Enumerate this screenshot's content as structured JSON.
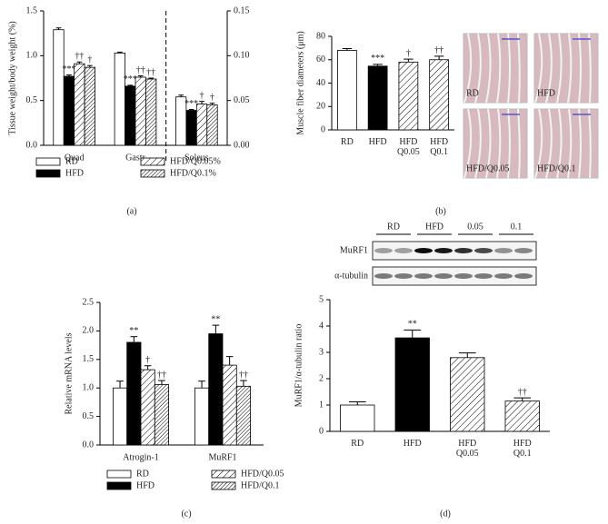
{
  "chart_data": [
    {
      "type": "bar",
      "panel": "(a)",
      "ylabel": "Tissue weight/body weight (%)",
      "categories": [
        "Quad",
        "Gastr",
        "Soleus"
      ],
      "category_axis": [
        "y",
        "y",
        "y2"
      ],
      "series": [
        {
          "name": "RD",
          "color": "#ffffff",
          "pattern": "none",
          "values": [
            1.29,
            1.03,
            0.054
          ],
          "errors": [
            0.02,
            0.01,
            0.002
          ],
          "labels": [
            null,
            null,
            null
          ]
        },
        {
          "name": "HFD",
          "color": "#000000",
          "pattern": "none",
          "values": [
            0.77,
            0.66,
            0.039
          ],
          "errors": [
            0.015,
            0.01,
            0.001
          ],
          "labels": [
            "***",
            "***",
            "***"
          ]
        },
        {
          "name": "HFD/Q0.05%",
          "color": "#ffffff",
          "pattern": "hatch",
          "values": [
            0.91,
            0.76,
            0.046
          ],
          "errors": [
            0.02,
            0.015,
            0.003
          ],
          "labels": [
            "††",
            "††",
            "†"
          ]
        },
        {
          "name": "HFD/Q0.1%",
          "color": "#ffffff",
          "pattern": "dense",
          "values": [
            0.87,
            0.74,
            0.045
          ],
          "errors": [
            0.02,
            0.01,
            0.002
          ],
          "labels": [
            "†",
            "††",
            "†"
          ]
        }
      ],
      "ylim": [
        0,
        1.5
      ],
      "yticks": [
        {
          "value": 0,
          "label": "0.0"
        },
        {
          "value": 0.5,
          "label": "0.5"
        },
        {
          "value": 1,
          "label": "1.0"
        },
        {
          "value": 1.5,
          "label": "1.5"
        }
      ],
      "y2lim": [
        0,
        0.15
      ],
      "y2ticks": [
        {
          "value": 0,
          "label": "0.00"
        },
        {
          "value": 0.05,
          "label": "0.05"
        },
        {
          "value": 0.1,
          "label": "0.10"
        },
        {
          "value": 0.15,
          "label": "0.15"
        }
      ],
      "divider": true,
      "legend": "bottom"
    },
    {
      "type": "bar",
      "panel": "(b)",
      "ylabel": "Muscle fiber diameters (μm)",
      "categories": [
        [
          "RD"
        ],
        [
          "HFD"
        ],
        [
          "HFD",
          "Q0.05"
        ],
        [
          "HFD",
          "Q0.1"
        ]
      ],
      "values": [
        68,
        54.5,
        58,
        60
      ],
      "errors": [
        1.5,
        1.5,
        2.5,
        3
      ],
      "labels": [
        null,
        "***",
        "†",
        "††"
      ],
      "colors": [
        "#ffffff",
        "#000000",
        "#ffffff",
        "#ffffff"
      ],
      "patterns": [
        "none",
        "none",
        "hatch",
        "hatch"
      ],
      "ylim": [
        0,
        80
      ],
      "yticks": [
        0,
        20,
        40,
        60,
        80
      ],
      "micrographs": [
        "RD",
        "HFD",
        "HFD/Q0.05",
        "HFD/Q0.1"
      ]
    },
    {
      "type": "bar",
      "panel": "(c)",
      "ylabel": "Relative mRNA levels",
      "categories": [
        "Atrogin-1",
        "MuRF1"
      ],
      "series": [
        {
          "name": "RD",
          "color": "#ffffff",
          "pattern": "none",
          "values": [
            1.0,
            1.0
          ],
          "errors": [
            0.12,
            0.12
          ],
          "labels": [
            null,
            null
          ]
        },
        {
          "name": "HFD",
          "color": "#000000",
          "pattern": "none",
          "values": [
            1.8,
            1.95
          ],
          "errors": [
            0.1,
            0.15
          ],
          "labels": [
            "**",
            "**"
          ]
        },
        {
          "name": "HFD/Q0.05",
          "color": "#ffffff",
          "pattern": "hatch",
          "values": [
            1.32,
            1.4
          ],
          "errors": [
            0.07,
            0.15
          ],
          "labels": [
            "†",
            null
          ]
        },
        {
          "name": "HFD/Q0.1",
          "color": "#ffffff",
          "pattern": "dense",
          "values": [
            1.06,
            1.03
          ],
          "errors": [
            0.07,
            0.1
          ],
          "labels": [
            "††",
            "††"
          ]
        }
      ],
      "ylim": [
        0,
        2.5
      ],
      "yticks": [
        {
          "value": 0,
          "label": "0.0"
        },
        {
          "value": 0.5,
          "label": "0.5"
        },
        {
          "value": 1,
          "label": "1.0"
        },
        {
          "value": 1.5,
          "label": "1.5"
        },
        {
          "value": 2,
          "label": "2.0"
        },
        {
          "value": 2.5,
          "label": "2.5"
        }
      ],
      "legend": "bottom"
    },
    {
      "type": "bar",
      "panel": "(d)",
      "ylabel": "MuRF1/α-tubulin ratio",
      "categories": [
        [
          "RD"
        ],
        [
          "HFD"
        ],
        [
          "HFD",
          "Q0.05"
        ],
        [
          "HFD",
          "Q0.1"
        ]
      ],
      "values": [
        1.0,
        3.55,
        2.8,
        1.15
      ],
      "errors": [
        0.12,
        0.3,
        0.18,
        0.12
      ],
      "labels": [
        null,
        "**",
        null,
        "††"
      ],
      "colors": [
        "#ffffff",
        "#000000",
        "#ffffff",
        "#ffffff"
      ],
      "patterns": [
        "none",
        "none",
        "hatch",
        "hatch"
      ],
      "ylim": [
        0,
        5
      ],
      "yticks": [
        0,
        1,
        2,
        3,
        4,
        5
      ],
      "blot": {
        "rows": [
          "MuRF1",
          "α-tubulin"
        ],
        "groups": [
          "RD",
          "HFD",
          "0.05",
          "0.1"
        ]
      }
    }
  ]
}
